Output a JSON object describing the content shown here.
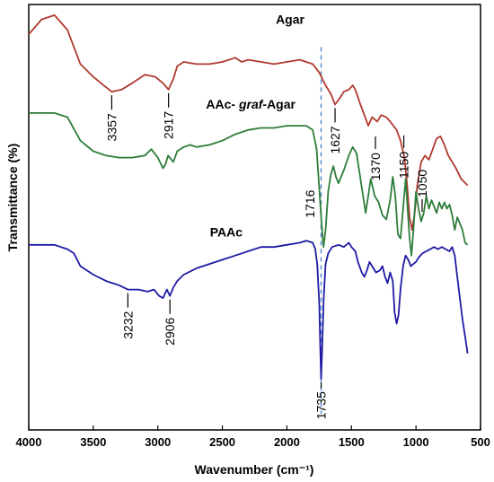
{
  "chart_data": {
    "type": "line",
    "xlabel": "Wavenumber (cm⁻¹)",
    "ylabel": "Transmittance (%)",
    "xlim": [
      4000,
      500
    ],
    "x_reversed": true,
    "y_ticks_shown": false,
    "grid": false,
    "xticks": [
      4000,
      3500,
      3000,
      2500,
      2000,
      1500,
      1000,
      500
    ],
    "xtick_labels": [
      "4000",
      "3500",
      "3000",
      "2500",
      "2000",
      "1500",
      "1000",
      "500"
    ],
    "reference_line": {
      "x": 1735,
      "style": "dashed",
      "color": "#4a7ec8"
    },
    "series": [
      {
        "name": "Agar",
        "color": "#b03a2e",
        "label": "Agar",
        "points": [
          [
            4000,
            0.93
          ],
          [
            3900,
            0.965
          ],
          [
            3800,
            0.975
          ],
          [
            3700,
            0.94
          ],
          [
            3600,
            0.86
          ],
          [
            3500,
            0.83
          ],
          [
            3420,
            0.81
          ],
          [
            3357,
            0.795
          ],
          [
            3280,
            0.8
          ],
          [
            3200,
            0.815
          ],
          [
            3100,
            0.835
          ],
          [
            3020,
            0.83
          ],
          [
            2960,
            0.815
          ],
          [
            2917,
            0.8
          ],
          [
            2880,
            0.825
          ],
          [
            2850,
            0.855
          ],
          [
            2800,
            0.865
          ],
          [
            2700,
            0.86
          ],
          [
            2600,
            0.86
          ],
          [
            2500,
            0.865
          ],
          [
            2400,
            0.875
          ],
          [
            2350,
            0.865
          ],
          [
            2300,
            0.87
          ],
          [
            2200,
            0.865
          ],
          [
            2100,
            0.86
          ],
          [
            2000,
            0.865
          ],
          [
            1900,
            0.87
          ],
          [
            1800,
            0.86
          ],
          [
            1750,
            0.84
          ],
          [
            1700,
            0.81
          ],
          [
            1660,
            0.79
          ],
          [
            1627,
            0.765
          ],
          [
            1590,
            0.78
          ],
          [
            1560,
            0.795
          ],
          [
            1520,
            0.8
          ],
          [
            1490,
            0.81
          ],
          [
            1470,
            0.8
          ],
          [
            1430,
            0.765
          ],
          [
            1400,
            0.74
          ],
          [
            1370,
            0.715
          ],
          [
            1340,
            0.735
          ],
          [
            1300,
            0.725
          ],
          [
            1270,
            0.74
          ],
          [
            1230,
            0.735
          ],
          [
            1200,
            0.725
          ],
          [
            1150,
            0.705
          ],
          [
            1120,
            0.68
          ],
          [
            1090,
            0.64
          ],
          [
            1070,
            0.58
          ],
          [
            1050,
            0.5
          ],
          [
            1030,
            0.47
          ],
          [
            1010,
            0.51
          ],
          [
            990,
            0.575
          ],
          [
            960,
            0.63
          ],
          [
            930,
            0.645
          ],
          [
            900,
            0.635
          ],
          [
            870,
            0.66
          ],
          [
            840,
            0.685
          ],
          [
            810,
            0.69
          ],
          [
            780,
            0.67
          ],
          [
            750,
            0.645
          ],
          [
            720,
            0.63
          ],
          [
            690,
            0.615
          ],
          [
            650,
            0.59
          ],
          [
            600,
            0.575
          ]
        ]
      },
      {
        "name": "AAc- graf-Agar",
        "color": "#2e7d3a",
        "label_parts": [
          "AAc- ",
          "graf",
          "-Agar"
        ],
        "points": [
          [
            4000,
            0.745
          ],
          [
            3900,
            0.745
          ],
          [
            3800,
            0.745
          ],
          [
            3700,
            0.735
          ],
          [
            3600,
            0.68
          ],
          [
            3500,
            0.655
          ],
          [
            3400,
            0.645
          ],
          [
            3300,
            0.64
          ],
          [
            3200,
            0.64
          ],
          [
            3100,
            0.645
          ],
          [
            3050,
            0.66
          ],
          [
            3000,
            0.64
          ],
          [
            2960,
            0.615
          ],
          [
            2940,
            0.625
          ],
          [
            2920,
            0.645
          ],
          [
            2880,
            0.63
          ],
          [
            2850,
            0.655
          ],
          [
            2800,
            0.665
          ],
          [
            2750,
            0.67
          ],
          [
            2700,
            0.665
          ],
          [
            2600,
            0.67
          ],
          [
            2500,
            0.68
          ],
          [
            2400,
            0.695
          ],
          [
            2300,
            0.705
          ],
          [
            2200,
            0.71
          ],
          [
            2100,
            0.71
          ],
          [
            2000,
            0.715
          ],
          [
            1900,
            0.715
          ],
          [
            1850,
            0.715
          ],
          [
            1800,
            0.705
          ],
          [
            1770,
            0.66
          ],
          [
            1750,
            0.57
          ],
          [
            1730,
            0.48
          ],
          [
            1716,
            0.43
          ],
          [
            1700,
            0.47
          ],
          [
            1680,
            0.56
          ],
          [
            1660,
            0.6
          ],
          [
            1640,
            0.62
          ],
          [
            1620,
            0.595
          ],
          [
            1600,
            0.58
          ],
          [
            1560,
            0.61
          ],
          [
            1520,
            0.645
          ],
          [
            1490,
            0.665
          ],
          [
            1460,
            0.65
          ],
          [
            1440,
            0.61
          ],
          [
            1410,
            0.55
          ],
          [
            1390,
            0.51
          ],
          [
            1370,
            0.55
          ],
          [
            1350,
            0.59
          ],
          [
            1320,
            0.55
          ],
          [
            1290,
            0.535
          ],
          [
            1260,
            0.505
          ],
          [
            1230,
            0.495
          ],
          [
            1200,
            0.54
          ],
          [
            1180,
            0.595
          ],
          [
            1160,
            0.55
          ],
          [
            1140,
            0.46
          ],
          [
            1120,
            0.45
          ],
          [
            1100,
            0.52
          ],
          [
            1080,
            0.59
          ],
          [
            1065,
            0.52
          ],
          [
            1050,
            0.45
          ],
          [
            1035,
            0.41
          ],
          [
            1020,
            0.47
          ],
          [
            1000,
            0.56
          ],
          [
            980,
            0.52
          ],
          [
            960,
            0.49
          ],
          [
            940,
            0.51
          ],
          [
            920,
            0.55
          ],
          [
            900,
            0.52
          ],
          [
            880,
            0.54
          ],
          [
            860,
            0.525
          ],
          [
            840,
            0.51
          ],
          [
            820,
            0.535
          ],
          [
            800,
            0.52
          ],
          [
            780,
            0.535
          ],
          [
            760,
            0.52
          ],
          [
            740,
            0.53
          ],
          [
            720,
            0.505
          ],
          [
            700,
            0.47
          ],
          [
            680,
            0.5
          ],
          [
            660,
            0.485
          ],
          [
            640,
            0.47
          ],
          [
            620,
            0.44
          ],
          [
            600,
            0.435
          ]
        ]
      },
      {
        "name": "PAAc",
        "color": "#1f1aa3",
        "label": "PAAc",
        "points": [
          [
            4000,
            0.435
          ],
          [
            3900,
            0.435
          ],
          [
            3800,
            0.435
          ],
          [
            3700,
            0.425
          ],
          [
            3650,
            0.415
          ],
          [
            3600,
            0.385
          ],
          [
            3500,
            0.365
          ],
          [
            3400,
            0.35
          ],
          [
            3300,
            0.34
          ],
          [
            3232,
            0.33
          ],
          [
            3150,
            0.33
          ],
          [
            3080,
            0.325
          ],
          [
            3030,
            0.33
          ],
          [
            2990,
            0.315
          ],
          [
            2960,
            0.31
          ],
          [
            2930,
            0.33
          ],
          [
            2906,
            0.315
          ],
          [
            2880,
            0.335
          ],
          [
            2850,
            0.35
          ],
          [
            2800,
            0.365
          ],
          [
            2700,
            0.38
          ],
          [
            2600,
            0.39
          ],
          [
            2500,
            0.4
          ],
          [
            2400,
            0.41
          ],
          [
            2350,
            0.415
          ],
          [
            2300,
            0.42
          ],
          [
            2200,
            0.43
          ],
          [
            2100,
            0.43
          ],
          [
            2000,
            0.435
          ],
          [
            1900,
            0.44
          ],
          [
            1850,
            0.445
          ],
          [
            1800,
            0.44
          ],
          [
            1780,
            0.425
          ],
          [
            1765,
            0.39
          ],
          [
            1750,
            0.3
          ],
          [
            1742,
            0.2
          ],
          [
            1735,
            0.12
          ],
          [
            1728,
            0.18
          ],
          [
            1715,
            0.31
          ],
          [
            1700,
            0.39
          ],
          [
            1680,
            0.415
          ],
          [
            1650,
            0.43
          ],
          [
            1600,
            0.435
          ],
          [
            1560,
            0.43
          ],
          [
            1520,
            0.44
          ],
          [
            1500,
            0.43
          ],
          [
            1470,
            0.42
          ],
          [
            1450,
            0.395
          ],
          [
            1420,
            0.37
          ],
          [
            1400,
            0.36
          ],
          [
            1380,
            0.375
          ],
          [
            1360,
            0.395
          ],
          [
            1340,
            0.385
          ],
          [
            1310,
            0.37
          ],
          [
            1280,
            0.375
          ],
          [
            1260,
            0.385
          ],
          [
            1240,
            0.36
          ],
          [
            1220,
            0.345
          ],
          [
            1200,
            0.37
          ],
          [
            1180,
            0.35
          ],
          [
            1165,
            0.275
          ],
          [
            1150,
            0.25
          ],
          [
            1135,
            0.27
          ],
          [
            1120,
            0.33
          ],
          [
            1100,
            0.385
          ],
          [
            1080,
            0.41
          ],
          [
            1060,
            0.4
          ],
          [
            1040,
            0.385
          ],
          [
            1020,
            0.39
          ],
          [
            1000,
            0.395
          ],
          [
            980,
            0.405
          ],
          [
            950,
            0.415
          ],
          [
            920,
            0.42
          ],
          [
            890,
            0.425
          ],
          [
            860,
            0.43
          ],
          [
            830,
            0.425
          ],
          [
            800,
            0.43
          ],
          [
            770,
            0.425
          ],
          [
            740,
            0.42
          ],
          [
            720,
            0.43
          ],
          [
            700,
            0.41
          ],
          [
            680,
            0.36
          ],
          [
            660,
            0.31
          ],
          [
            640,
            0.26
          ],
          [
            620,
            0.22
          ],
          [
            600,
            0.18
          ]
        ]
      }
    ],
    "annotations": [
      {
        "text": "3357",
        "series": "Agar",
        "x": 3357,
        "y": 0.795
      },
      {
        "text": "2917",
        "series": "Agar",
        "x": 2917,
        "y": 0.8
      },
      {
        "text": "1627",
        "series": "Agar",
        "x": 1627,
        "y": 0.765
      },
      {
        "text": "1370",
        "series": "Agar",
        "x": 1370,
        "y": 0.715
      },
      {
        "text": "1150",
        "series": "Agar",
        "x": 1150,
        "y": 0.705
      },
      {
        "text": "1050",
        "series": "Agar",
        "x": 1050,
        "y": 0.5
      },
      {
        "text": "1716",
        "series": "AAc- graf-Agar",
        "x": 1716,
        "y": 0.43
      },
      {
        "text": "3232",
        "series": "PAAc",
        "x": 3232,
        "y": 0.33
      },
      {
        "text": "2906",
        "series": "PAAc",
        "x": 2906,
        "y": 0.315
      },
      {
        "text": "1735",
        "series": "PAAc",
        "x": 1735,
        "y": 0.12
      }
    ]
  }
}
